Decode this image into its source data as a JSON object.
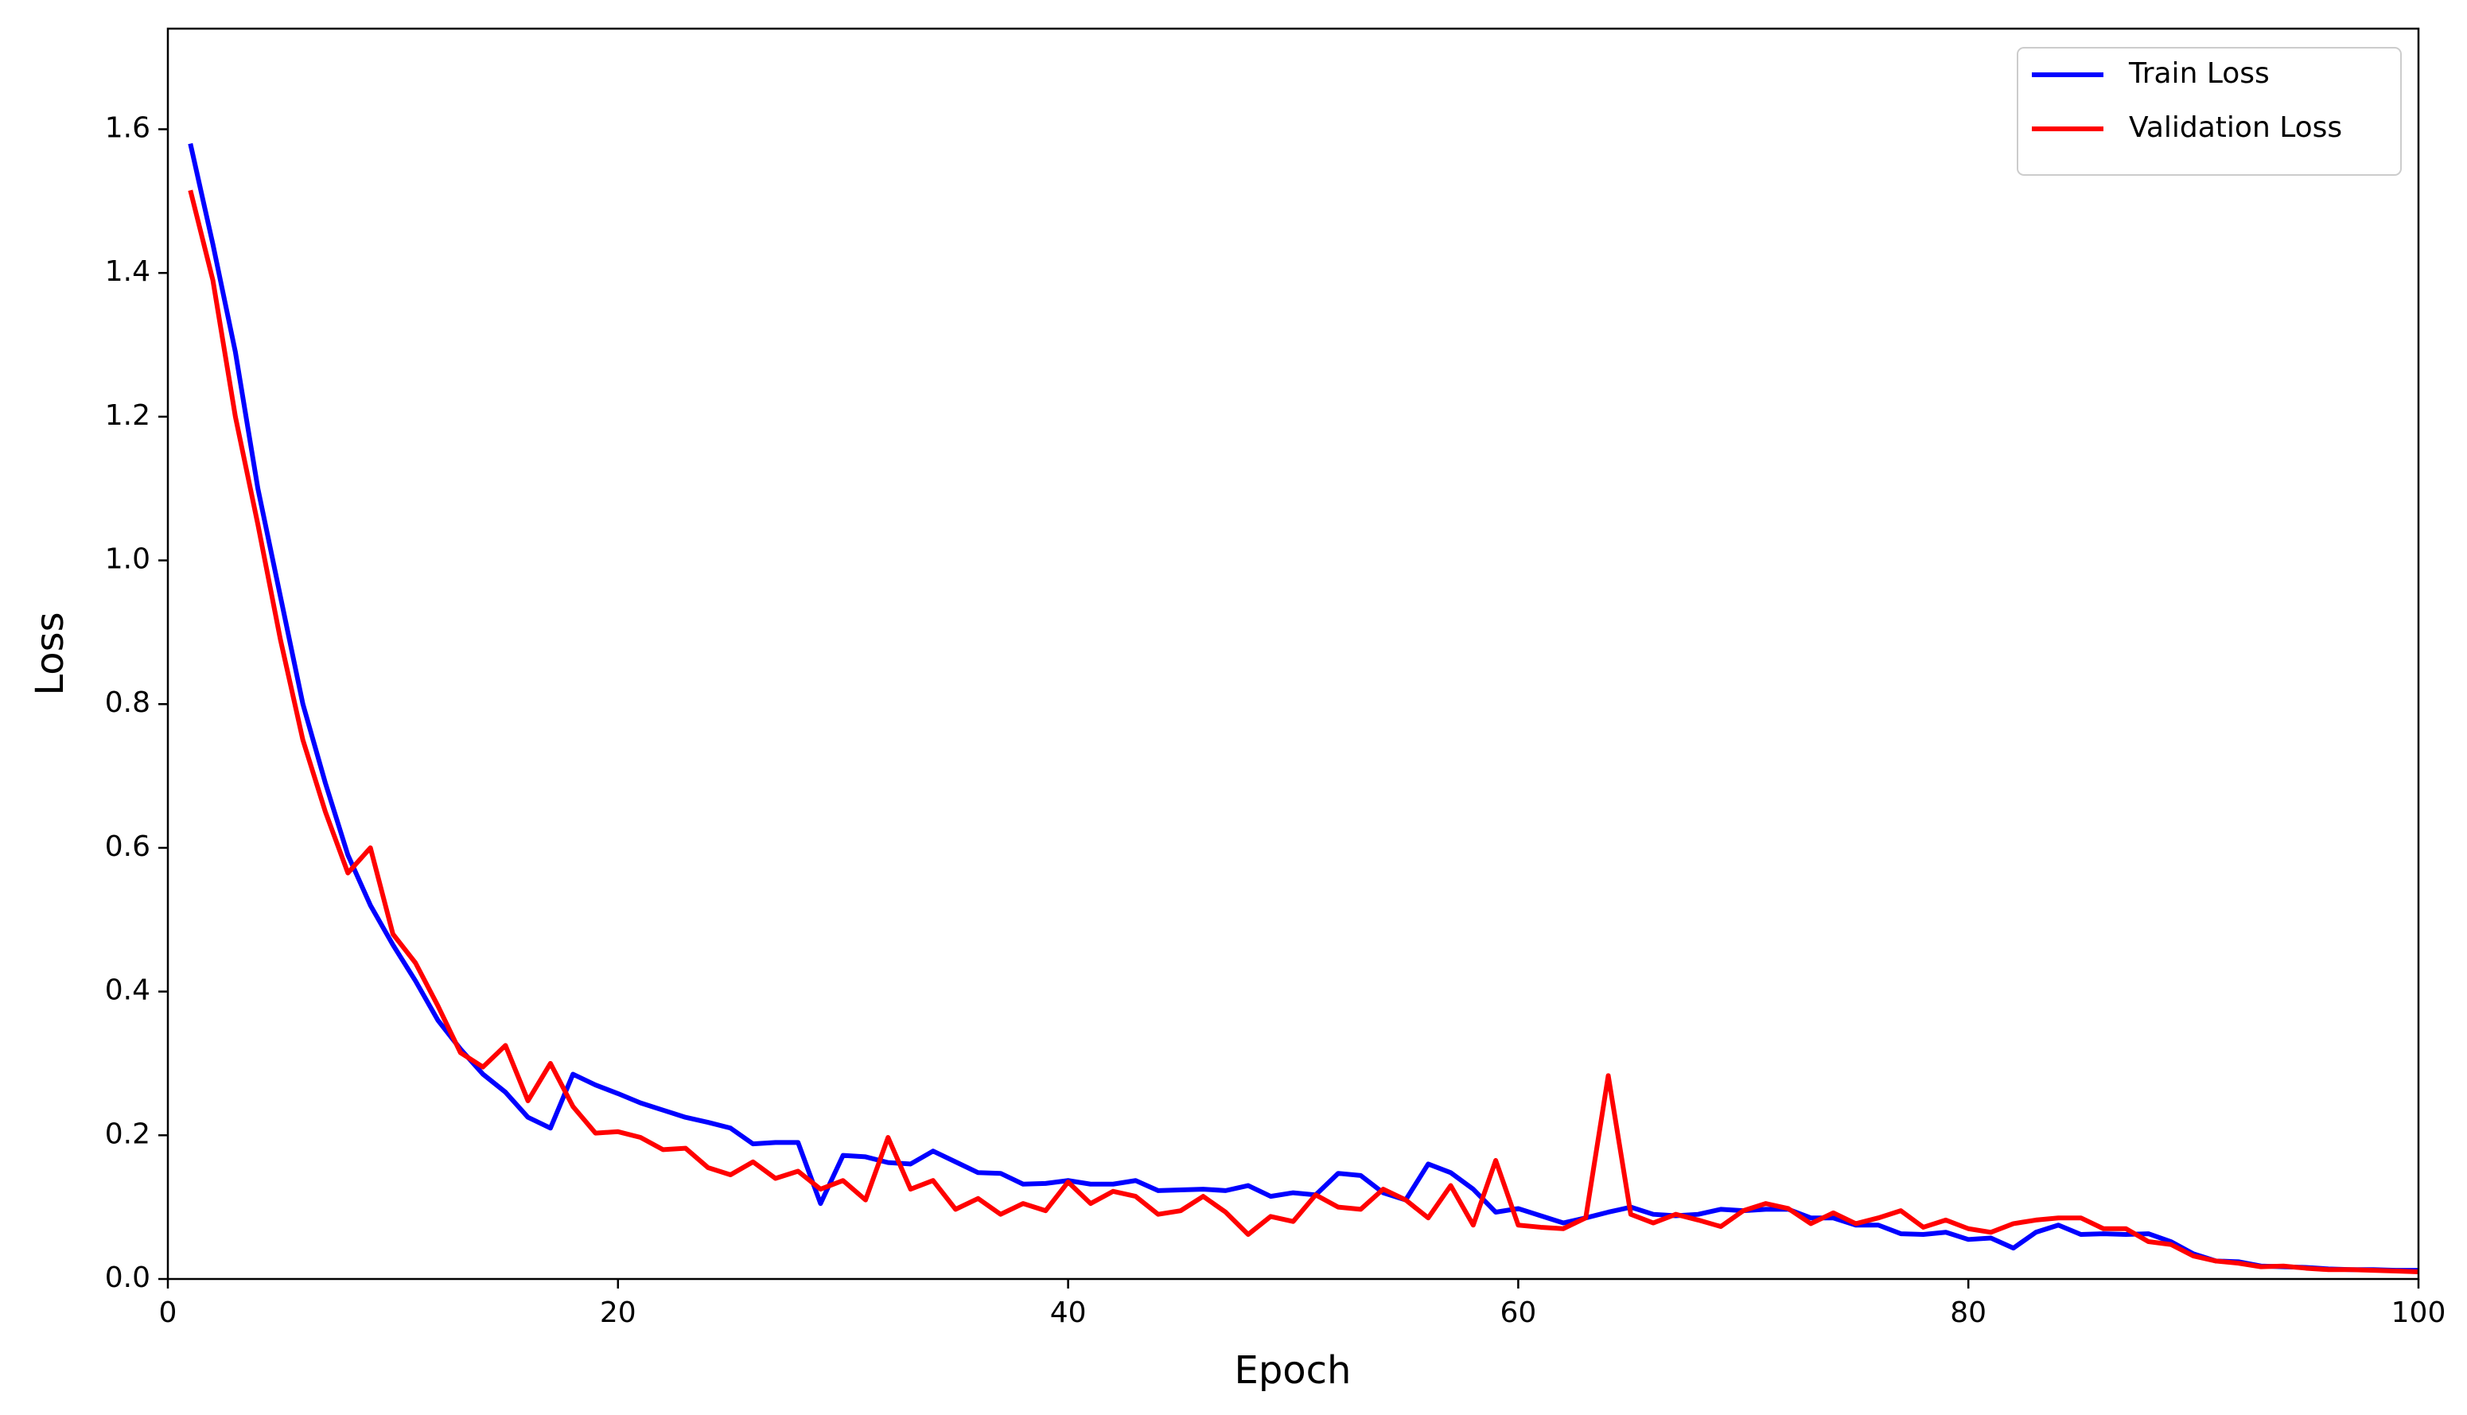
{
  "chart_data": {
    "type": "line",
    "xlabel": "Epoch",
    "ylabel": "Loss",
    "x": [
      1,
      2,
      3,
      4,
      5,
      6,
      7,
      8,
      9,
      10,
      11,
      12,
      13,
      14,
      15,
      16,
      17,
      18,
      19,
      20,
      21,
      22,
      23,
      24,
      25,
      26,
      27,
      28,
      29,
      30,
      31,
      32,
      33,
      34,
      35,
      36,
      37,
      38,
      39,
      40,
      41,
      42,
      43,
      44,
      45,
      46,
      47,
      48,
      49,
      50,
      51,
      52,
      53,
      54,
      55,
      56,
      57,
      58,
      59,
      60,
      61,
      62,
      63,
      64,
      65,
      66,
      67,
      68,
      69,
      70,
      71,
      72,
      73,
      74,
      75,
      76,
      77,
      78,
      79,
      80,
      81,
      82,
      83,
      84,
      85,
      86,
      87,
      88,
      89,
      90,
      91,
      92,
      93,
      94,
      95,
      96,
      97,
      98,
      99,
      100
    ],
    "series": [
      {
        "name": "Train Loss",
        "color": "#0000ff",
        "values": [
          1.58,
          1.44,
          1.29,
          1.1,
          0.95,
          0.8,
          0.69,
          0.59,
          0.52,
          0.465,
          0.415,
          0.36,
          0.32,
          0.285,
          0.26,
          0.225,
          0.21,
          0.285,
          0.27,
          0.258,
          0.245,
          0.235,
          0.225,
          0.218,
          0.21,
          0.188,
          0.19,
          0.19,
          0.105,
          0.172,
          0.17,
          0.162,
          0.16,
          0.178,
          0.163,
          0.148,
          0.147,
          0.132,
          0.133,
          0.137,
          0.132,
          0.132,
          0.137,
          0.123,
          0.124,
          0.125,
          0.123,
          0.13,
          0.115,
          0.12,
          0.117,
          0.147,
          0.144,
          0.12,
          0.11,
          0.16,
          0.148,
          0.125,
          0.093,
          0.098,
          0.088,
          0.078,
          0.085,
          0.093,
          0.1,
          0.09,
          0.088,
          0.09,
          0.097,
          0.095,
          0.097,
          0.097,
          0.085,
          0.085,
          0.075,
          0.075,
          0.063,
          0.062,
          0.065,
          0.055,
          0.057,
          0.043,
          0.065,
          0.075,
          0.062,
          0.063,
          0.062,
          0.063,
          0.052,
          0.035,
          0.025,
          0.024,
          0.018,
          0.017,
          0.016,
          0.014,
          0.013,
          0.013,
          0.012,
          0.012
        ]
      },
      {
        "name": "Validation Loss",
        "color": "#ff0000",
        "values": [
          1.515,
          1.39,
          1.2,
          1.05,
          0.89,
          0.75,
          0.65,
          0.565,
          0.6,
          0.48,
          0.44,
          0.38,
          0.315,
          0.295,
          0.325,
          0.248,
          0.3,
          0.24,
          0.203,
          0.205,
          0.197,
          0.18,
          0.182,
          0.155,
          0.145,
          0.163,
          0.14,
          0.15,
          0.125,
          0.137,
          0.11,
          0.197,
          0.125,
          0.137,
          0.097,
          0.112,
          0.09,
          0.105,
          0.095,
          0.135,
          0.105,
          0.122,
          0.115,
          0.09,
          0.095,
          0.115,
          0.093,
          0.062,
          0.087,
          0.08,
          0.117,
          0.1,
          0.097,
          0.125,
          0.11,
          0.085,
          0.13,
          0.075,
          0.165,
          0.075,
          0.072,
          0.07,
          0.085,
          0.283,
          0.09,
          0.078,
          0.09,
          0.082,
          0.073,
          0.095,
          0.105,
          0.098,
          0.077,
          0.092,
          0.077,
          0.085,
          0.095,
          0.072,
          0.082,
          0.07,
          0.065,
          0.077,
          0.082,
          0.085,
          0.085,
          0.07,
          0.07,
          0.052,
          0.048,
          0.032,
          0.025,
          0.022,
          0.017,
          0.018,
          0.015,
          0.013,
          0.013,
          0.012,
          0.011,
          0.01
        ]
      }
    ],
    "xlim": [
      0,
      100
    ],
    "xticks": [
      0,
      20,
      40,
      60,
      80,
      100
    ],
    "ylim": [
      0,
      1.74
    ],
    "yticks": [
      {
        "value": 0,
        "label": "0.0"
      },
      {
        "value": 0.2,
        "label": "0.2"
      },
      {
        "value": 0.4,
        "label": "0.4"
      },
      {
        "value": 0.6,
        "label": "0.6"
      },
      {
        "value": 0.8,
        "label": "0.8"
      },
      {
        "value": 1.0,
        "label": "1.0"
      },
      {
        "value": 1.2,
        "label": "1.2"
      },
      {
        "value": 1.4,
        "label": "1.4"
      },
      {
        "value": 1.6,
        "label": "1.6"
      }
    ],
    "legend": "upper right"
  }
}
